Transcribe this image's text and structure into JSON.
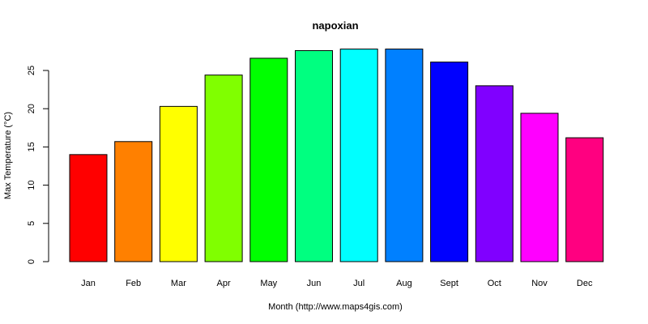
{
  "chart_data": {
    "type": "bar",
    "title": "napoxian",
    "xlabel": "Month (http://www.maps4gis.com)",
    "ylabel": "Max Temperature (°C)",
    "categories": [
      "Jan",
      "Feb",
      "Mar",
      "Apr",
      "May",
      "Jun",
      "Jul",
      "Aug",
      "Sept",
      "Oct",
      "Nov",
      "Dec"
    ],
    "values": [
      14.0,
      15.7,
      20.3,
      24.4,
      26.6,
      27.6,
      27.8,
      27.8,
      26.1,
      23.0,
      19.4,
      16.2
    ],
    "colors": [
      "#FF0000",
      "#FF8000",
      "#FFFF00",
      "#80FF00",
      "#00FF00",
      "#00FF80",
      "#00FFFF",
      "#0080FF",
      "#0000FF",
      "#8000FF",
      "#FF00FF",
      "#FF0080"
    ],
    "yticks": [
      "0",
      "5",
      "10",
      "15",
      "20",
      "25"
    ],
    "ylim": [
      0,
      28.2
    ],
    "grid": false,
    "legend": "none"
  }
}
